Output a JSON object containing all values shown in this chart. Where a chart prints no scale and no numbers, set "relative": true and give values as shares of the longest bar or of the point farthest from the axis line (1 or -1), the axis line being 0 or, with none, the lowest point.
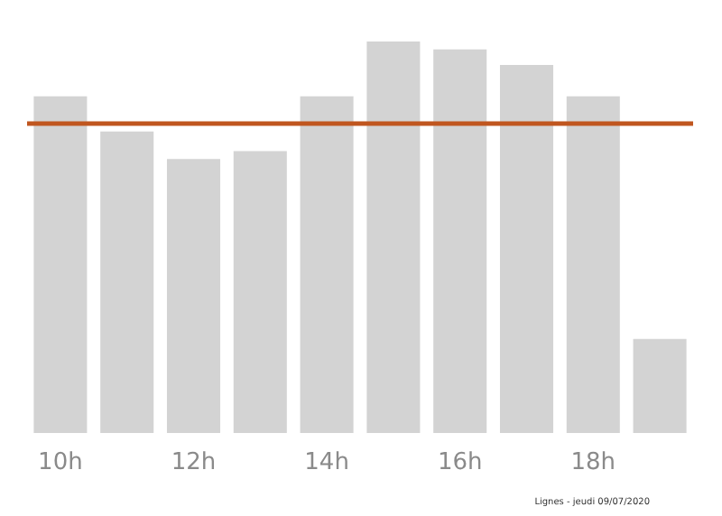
{
  "chart_data": {
    "type": "bar",
    "relative": true,
    "categories": [
      "10h",
      null,
      "12h",
      null,
      "14h",
      null,
      "16h",
      null,
      "18h",
      null
    ],
    "series": [
      {
        "color": "#d3d3d3",
        "values": [
          0.86,
          0.77,
          0.7,
          0.72,
          0.86,
          1,
          0.98,
          0.94,
          0.86,
          0.24
        ]
      }
    ],
    "ref_lines": [
      {
        "axis": "y",
        "value": 0.79,
        "label": null,
        "color": "#c0561f"
      }
    ],
    "annotations": [
      "Lignes - jeudi 09/07/2020"
    ]
  }
}
